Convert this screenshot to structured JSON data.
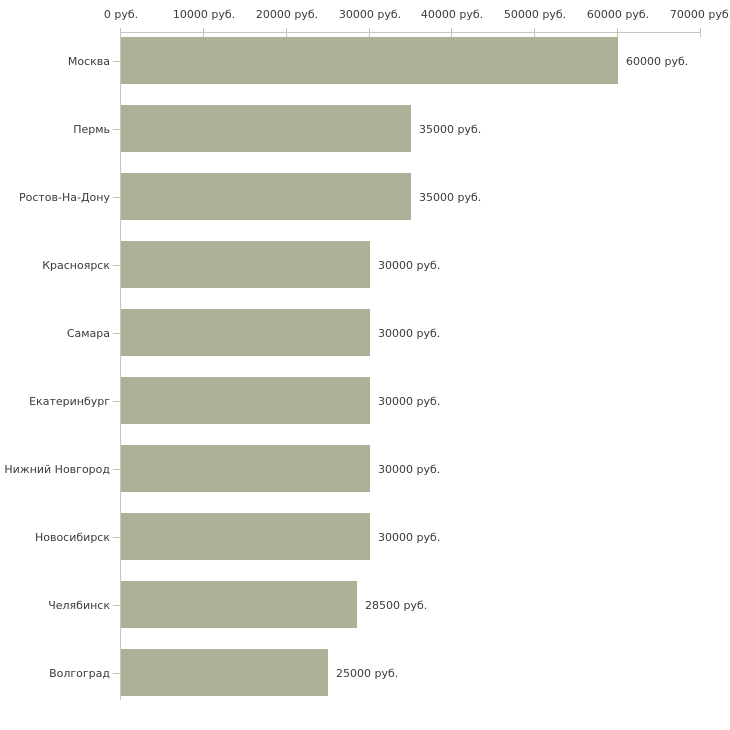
{
  "chart_data": {
    "type": "bar",
    "orientation": "horizontal",
    "title": "",
    "xlabel": "",
    "ylabel": "",
    "xlim": [
      0,
      70000
    ],
    "grid": false,
    "legend": false,
    "categories": [
      "Москва",
      "Пермь",
      "Ростов-На-Дону",
      "Красноярск",
      "Самара",
      "Екатеринбург",
      "Нижний Новгород",
      "Новосибирск",
      "Челябинск",
      "Волгоград"
    ],
    "values": [
      60000,
      35000,
      35000,
      30000,
      30000,
      30000,
      30000,
      30000,
      28500,
      25000
    ],
    "value_labels": [
      "60000 руб.",
      "35000 руб.",
      "35000 руб.",
      "30000 руб.",
      "30000 руб.",
      "30000 руб.",
      "30000 руб.",
      "30000 руб.",
      "28500 руб.",
      "25000 руб."
    ],
    "x_tick_values": [
      0,
      10000,
      20000,
      30000,
      40000,
      50000,
      60000,
      70000
    ],
    "x_tick_labels": [
      "0 руб.",
      "10000 руб.",
      "20000 руб.",
      "30000 руб.",
      "40000 руб.",
      "50000 руб.",
      "60000 руб.",
      "70000 руб."
    ],
    "colors": {
      "bar": "#acb198",
      "axis_line": "#c6c6c6",
      "tick": "#c9c7a2",
      "text": "#3b3b3b",
      "background": "#ffffff"
    }
  }
}
